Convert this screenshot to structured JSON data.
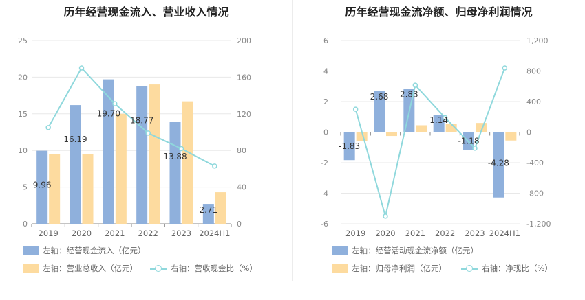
{
  "colors": {
    "bar1": "#8fb0dc",
    "bar2": "#fddb9f",
    "line": "#8fd8dc",
    "grid": "#e8e8e8"
  },
  "chart_data": [
    {
      "type": "bar",
      "title": "历年经营现金流入、营业收入情况",
      "categories": [
        "2019",
        "2020",
        "2021",
        "2022",
        "2023",
        "2024H1"
      ],
      "left_axis": {
        "ylim": [
          0,
          25
        ],
        "ticks": [
          "0",
          "5",
          "10",
          "15",
          "20",
          "25"
        ]
      },
      "right_axis": {
        "ylim": [
          0,
          200
        ],
        "ticks": [
          "0",
          "40",
          "80",
          "120",
          "160",
          "200"
        ]
      },
      "series": [
        {
          "name": "左轴：经营现金流入（亿元）",
          "type": "bar",
          "axis": "left",
          "values": [
            9.96,
            16.19,
            19.7,
            18.77,
            13.88,
            2.71
          ],
          "labels": [
            "9.96",
            "16.19",
            "19.70",
            "18.77",
            "13.88",
            "2.71"
          ]
        },
        {
          "name": "左轴：营业总收入（亿元）",
          "type": "bar",
          "axis": "left",
          "values": [
            9.5,
            9.5,
            15.0,
            19.0,
            16.7,
            4.3
          ]
        },
        {
          "name": "右轴：营收现金比（%）",
          "type": "line",
          "axis": "right",
          "values": [
            105,
            170,
            131,
            99,
            82,
            63
          ]
        }
      ]
    },
    {
      "type": "bar",
      "title": "历年经营现金流净额、归母净利润情况",
      "categories": [
        "2019",
        "2020",
        "2021",
        "2022",
        "2023",
        "2024H1"
      ],
      "left_axis": {
        "ylim": [
          -6,
          6
        ],
        "ticks": [
          "-6",
          "-4",
          "-2",
          "0",
          "2",
          "4",
          "6"
        ]
      },
      "right_axis": {
        "ylim": [
          -1200,
          1200
        ],
        "ticks": [
          "-1,200",
          "-800",
          "-400",
          "0",
          "400",
          "800",
          "1,200"
        ]
      },
      "series": [
        {
          "name": "左轴：经营活动现金流净额（亿元）",
          "type": "bar",
          "axis": "left",
          "values": [
            -1.83,
            2.68,
            2.83,
            1.14,
            -1.18,
            -4.28
          ],
          "labels": [
            "-1.83",
            "2.68",
            "2.83",
            "1.14",
            "-1.18",
            "-4.28"
          ]
        },
        {
          "name": "左轴：归母净利润（亿元）",
          "type": "bar",
          "axis": "left",
          "values": [
            -0.6,
            -0.25,
            0.45,
            0.55,
            0.6,
            -0.55
          ]
        },
        {
          "name": "右轴：净现比（%）",
          "type": "line",
          "axis": "right",
          "values": [
            300,
            -1100,
            615,
            190,
            -210,
            840
          ]
        }
      ]
    }
  ]
}
